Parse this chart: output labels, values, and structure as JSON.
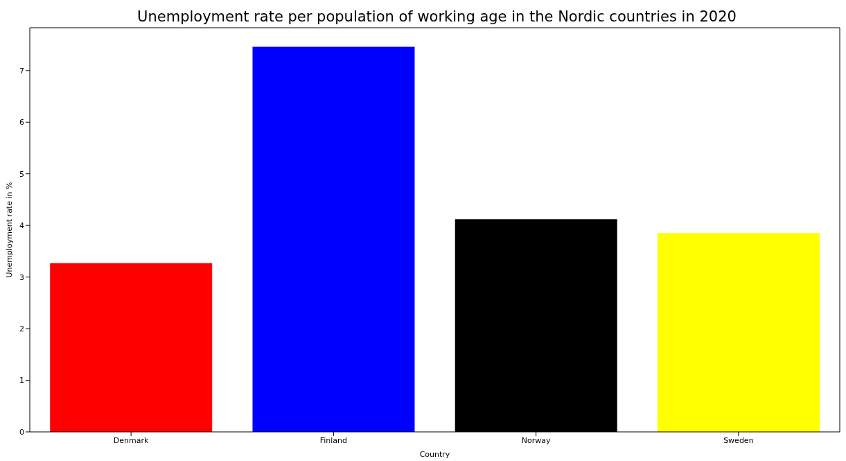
{
  "chart_data": {
    "type": "bar",
    "title": "Unemployment rate per population of working age in the Nordic countries in 2020",
    "xlabel": "Country",
    "ylabel": "Unemployment rate in %",
    "categories": [
      "Denmark",
      "Finland",
      "Norway",
      "Sweden"
    ],
    "values": [
      3.27,
      7.46,
      4.12,
      3.85
    ],
    "colors": [
      "#ff0000",
      "#0000ff",
      "#000000",
      "#ffff00"
    ],
    "ylim": [
      0,
      7.83
    ],
    "yticks": [
      0,
      1,
      2,
      3,
      4,
      5,
      6,
      7
    ],
    "grid": false,
    "legend": false
  }
}
